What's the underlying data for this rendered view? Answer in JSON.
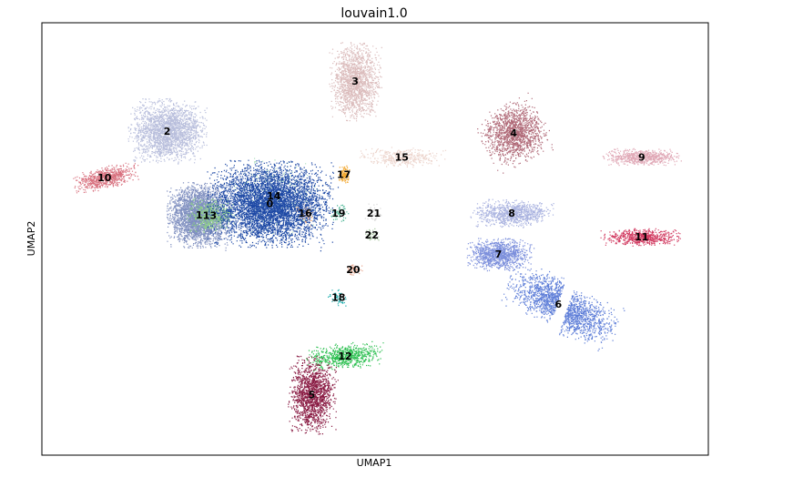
{
  "chart_data": {
    "type": "scatter",
    "title": "louvain1.0",
    "xlabel": "UMAP1",
    "ylabel": "UMAP2",
    "xlim": [
      0,
      100
    ],
    "ylim": [
      0,
      100
    ],
    "ticks_shown": false,
    "grid": false,
    "legend": "cluster labels drawn on plot",
    "clusters": [
      {
        "id": "0",
        "color": "#1f4aa6",
        "x": 34.2,
        "y": 58.2,
        "n": 7800
      },
      {
        "id": "1",
        "color": "#8090c0",
        "x": 23.6,
        "y": 55.6,
        "n": 3200
      },
      {
        "id": "2",
        "color": "#b8bedc",
        "x": 18.8,
        "y": 75.0,
        "n": 2200
      },
      {
        "id": "3",
        "color": "#dbbcbc",
        "x": 47.0,
        "y": 86.5,
        "n": 1600
      },
      {
        "id": "4",
        "color": "#b06a78",
        "x": 70.8,
        "y": 74.5,
        "n": 1400
      },
      {
        "id": "5",
        "color": "#8a1c44",
        "x": 40.5,
        "y": 14.0,
        "n": 1500
      },
      {
        "id": "6",
        "color": "#5e7ed8",
        "x": 77.5,
        "y": 35.0,
        "n": 1700
      },
      {
        "id": "7",
        "color": "#7d90dc",
        "x": 68.5,
        "y": 46.5,
        "n": 1100
      },
      {
        "id": "8",
        "color": "#aab3e0",
        "x": 70.5,
        "y": 56.0,
        "n": 900
      },
      {
        "id": "9",
        "color": "#e0a8b6",
        "x": 90.0,
        "y": 69.0,
        "n": 650
      },
      {
        "id": "10",
        "color": "#d8707e",
        "x": 9.4,
        "y": 64.2,
        "n": 700
      },
      {
        "id": "11",
        "color": "#d23c62",
        "x": 90.0,
        "y": 50.5,
        "n": 650
      },
      {
        "id": "12",
        "color": "#2ec052",
        "x": 45.5,
        "y": 23.0,
        "n": 700
      },
      {
        "id": "13",
        "color": "#8ed086",
        "x": 25.2,
        "y": 55.5,
        "n": 500
      },
      {
        "id": "14",
        "color": "#b0e0c0",
        "x": 34.8,
        "y": 60.0,
        "n": 300
      },
      {
        "id": "15",
        "color": "#ecd4cc",
        "x": 54.0,
        "y": 69.0,
        "n": 400
      },
      {
        "id": "16",
        "color": "#e8a878",
        "x": 39.5,
        "y": 56.0,
        "n": 90
      },
      {
        "id": "17",
        "color": "#f2a830",
        "x": 45.3,
        "y": 65.0,
        "n": 120
      },
      {
        "id": "18",
        "color": "#20b0b0",
        "x": 44.5,
        "y": 36.5,
        "n": 50
      },
      {
        "id": "19",
        "color": "#50b898",
        "x": 44.5,
        "y": 56.0,
        "n": 60
      },
      {
        "id": "20",
        "color": "#e8a890",
        "x": 46.7,
        "y": 43.0,
        "n": 50
      },
      {
        "id": "21",
        "color": "#d8d8d8",
        "x": 49.8,
        "y": 56.0,
        "n": 40
      },
      {
        "id": "22",
        "color": "#a8c8a0",
        "x": 49.5,
        "y": 51.0,
        "n": 40
      }
    ]
  }
}
